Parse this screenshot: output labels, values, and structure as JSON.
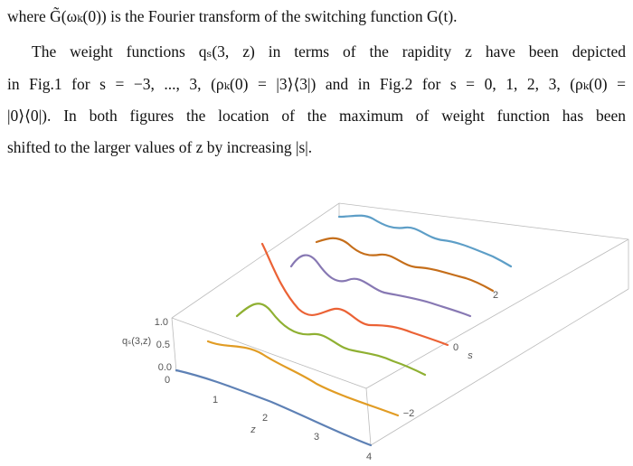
{
  "paragraph_1": {
    "lines": [
      "where G̃(ωₖ(0)) is the Fourier transform of the switching function G(t)."
    ]
  },
  "paragraph_2": {
    "lines": [
      "The weight functions qₛ(3, z) in terms of the rapidity z have been depicted",
      "in Fig.1 for s = −3, ..., 3, (ρₖ(0) = |3⟩⟨3|) and in Fig.2 for s = 0, 1, 2, 3, (ρₖ(0) =",
      "|0⟩⟨0|). In both figures the location of the maximum of weight function has been",
      "shifted to the larger values of z by increasing |s|."
    ]
  },
  "figure": {
    "vertical_axis": {
      "label": "qₛ(3,z)",
      "ticks": [
        "1.0",
        "0.5",
        "0.0"
      ]
    },
    "z_axis": {
      "label": "z",
      "ticks": [
        "0",
        "1",
        "2",
        "3",
        "4"
      ]
    },
    "s_axis": {
      "label": "s",
      "ticks": [
        "−2",
        "0",
        "2"
      ]
    }
  }
}
